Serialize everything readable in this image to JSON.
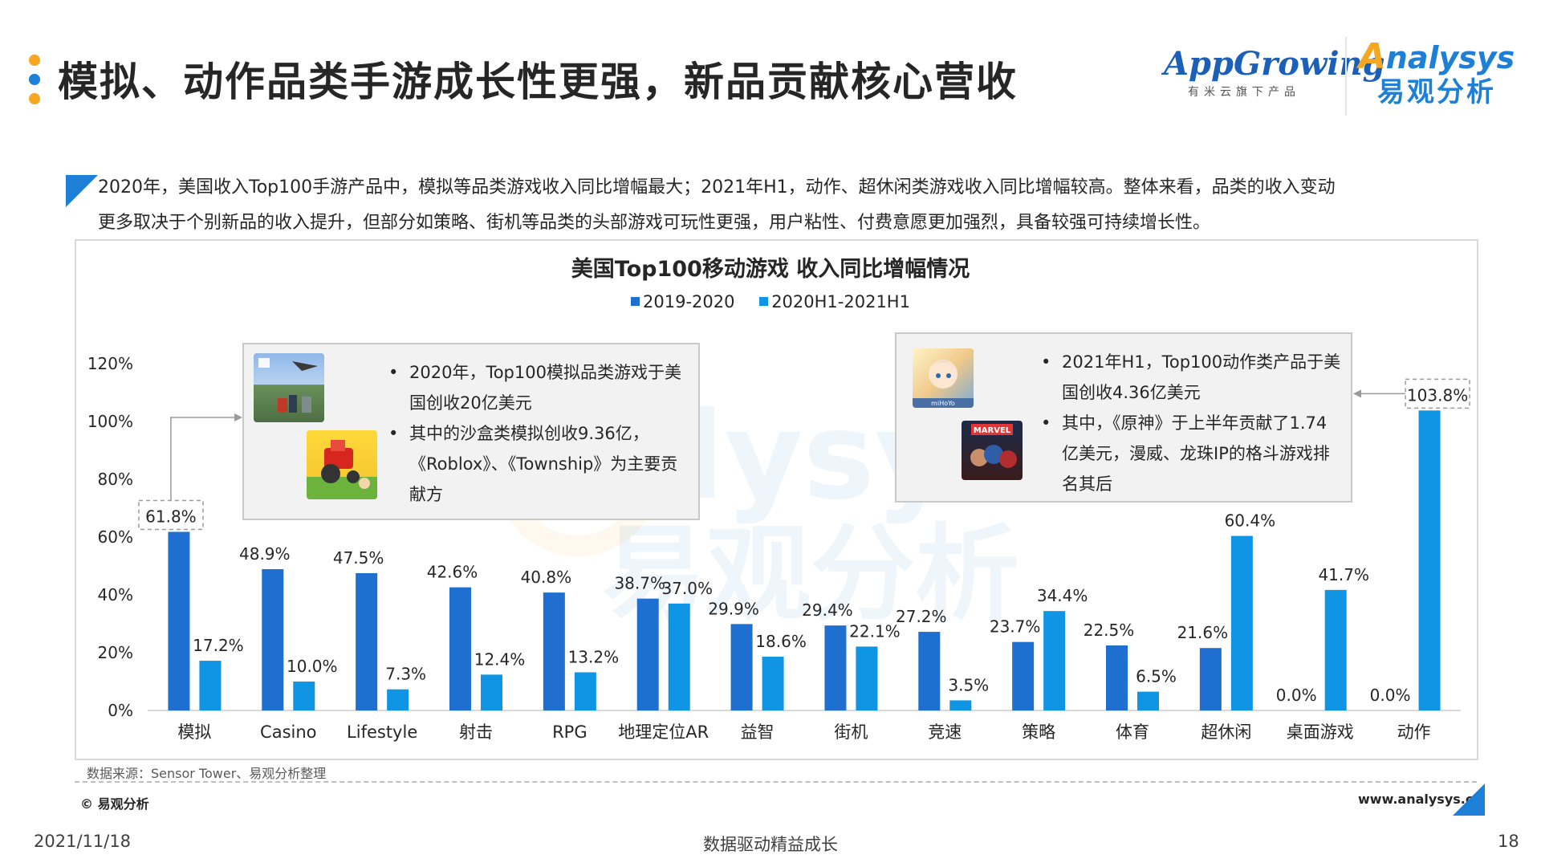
{
  "header": {
    "title": "模拟、动作品类手游成长性更强，新品贡献核心营收",
    "dot_colors": [
      "#f5a623",
      "#1d7fd6",
      "#f5a623"
    ]
  },
  "logos": {
    "appgrowing": {
      "app": "App",
      "growing": "Growing",
      "tagline": "有米云旗下产品"
    },
    "analysys": {
      "latin": "nalysys",
      "chinese": "易观分析",
      "mark": "A"
    }
  },
  "intro": {
    "line1": "2020年，美国收入Top100手游产品中，模拟等品类游戏收入同比增幅最大；2021年H1，动作、超休闲类游戏收入同比增幅较高。整体来看，品类的收入变动",
    "line2": "更多取决于个别新品的收入提升，但部分如策略、街机等品类的头部游戏可玩性更强，用户粘性、付费意愿更加强烈，具备较强可持续增长性。"
  },
  "callout_left": {
    "bullets": [
      "2020年，Top100模拟品类游戏于美国创收20亿美元",
      "其中的沙盒类模拟创收9.36亿，《Roblox》、《Township》为主要贡献方"
    ],
    "thumb1_icon": "roblox-game-screenshot",
    "thumb2_icon": "township-tractor-icon"
  },
  "callout_right": {
    "bullets": [
      "2021年H1，Top100动作类产品于美国创收4.36亿美元",
      "其中，《原神》于上半年贡献了1.74亿美元，漫威、龙珠IP的格斗游戏排名其后"
    ],
    "thumb1_icon": "genshin-impact-app-icon",
    "thumb1_label": "miHoYo",
    "thumb2_icon": "marvel-game-app-icon",
    "thumb2_label": "MARVEL"
  },
  "chart_data": {
    "type": "bar",
    "title": "美国Top100移动游戏 收入同比增幅情况",
    "categories": [
      "模拟",
      "Casino",
      "Lifestyle",
      "射击",
      "RPG",
      "地理定位AR",
      "益智",
      "街机",
      "竞速",
      "策略",
      "体育",
      "超休闲",
      "桌面游戏",
      "动作"
    ],
    "series": [
      {
        "name": "2019-2020",
        "color": "#1f6fd1",
        "values": [
          61.8,
          48.9,
          47.5,
          42.6,
          40.8,
          38.7,
          29.9,
          29.4,
          27.2,
          23.7,
          22.5,
          21.6,
          0.0,
          0.0
        ]
      },
      {
        "name": "2020H1-2021H1",
        "color": "#0f95e3",
        "values": [
          17.2,
          10.0,
          7.3,
          12.4,
          13.2,
          37.0,
          18.6,
          22.1,
          3.5,
          34.4,
          6.5,
          60.4,
          41.7,
          103.8
        ]
      }
    ],
    "value_suffix": "%",
    "ylim": [
      0,
      120
    ],
    "yticks": [
      "0%",
      "20%",
      "40%",
      "60%",
      "80%",
      "100%",
      "120%"
    ],
    "grid": false,
    "legend": "top-center",
    "highlighted": [
      {
        "series": 0,
        "category": "模拟"
      },
      {
        "series": 1,
        "category": "动作"
      }
    ]
  },
  "source": "数据来源：Sensor Tower、易观分析整理",
  "watermark": {
    "latin": "nalysys",
    "chinese": "易观分析"
  },
  "footer": {
    "copyright": "© 易观分析",
    "website": "www.analysys.cn",
    "date": "2021/11/18",
    "slogan": "数据驱动精益成长",
    "page": "18"
  }
}
